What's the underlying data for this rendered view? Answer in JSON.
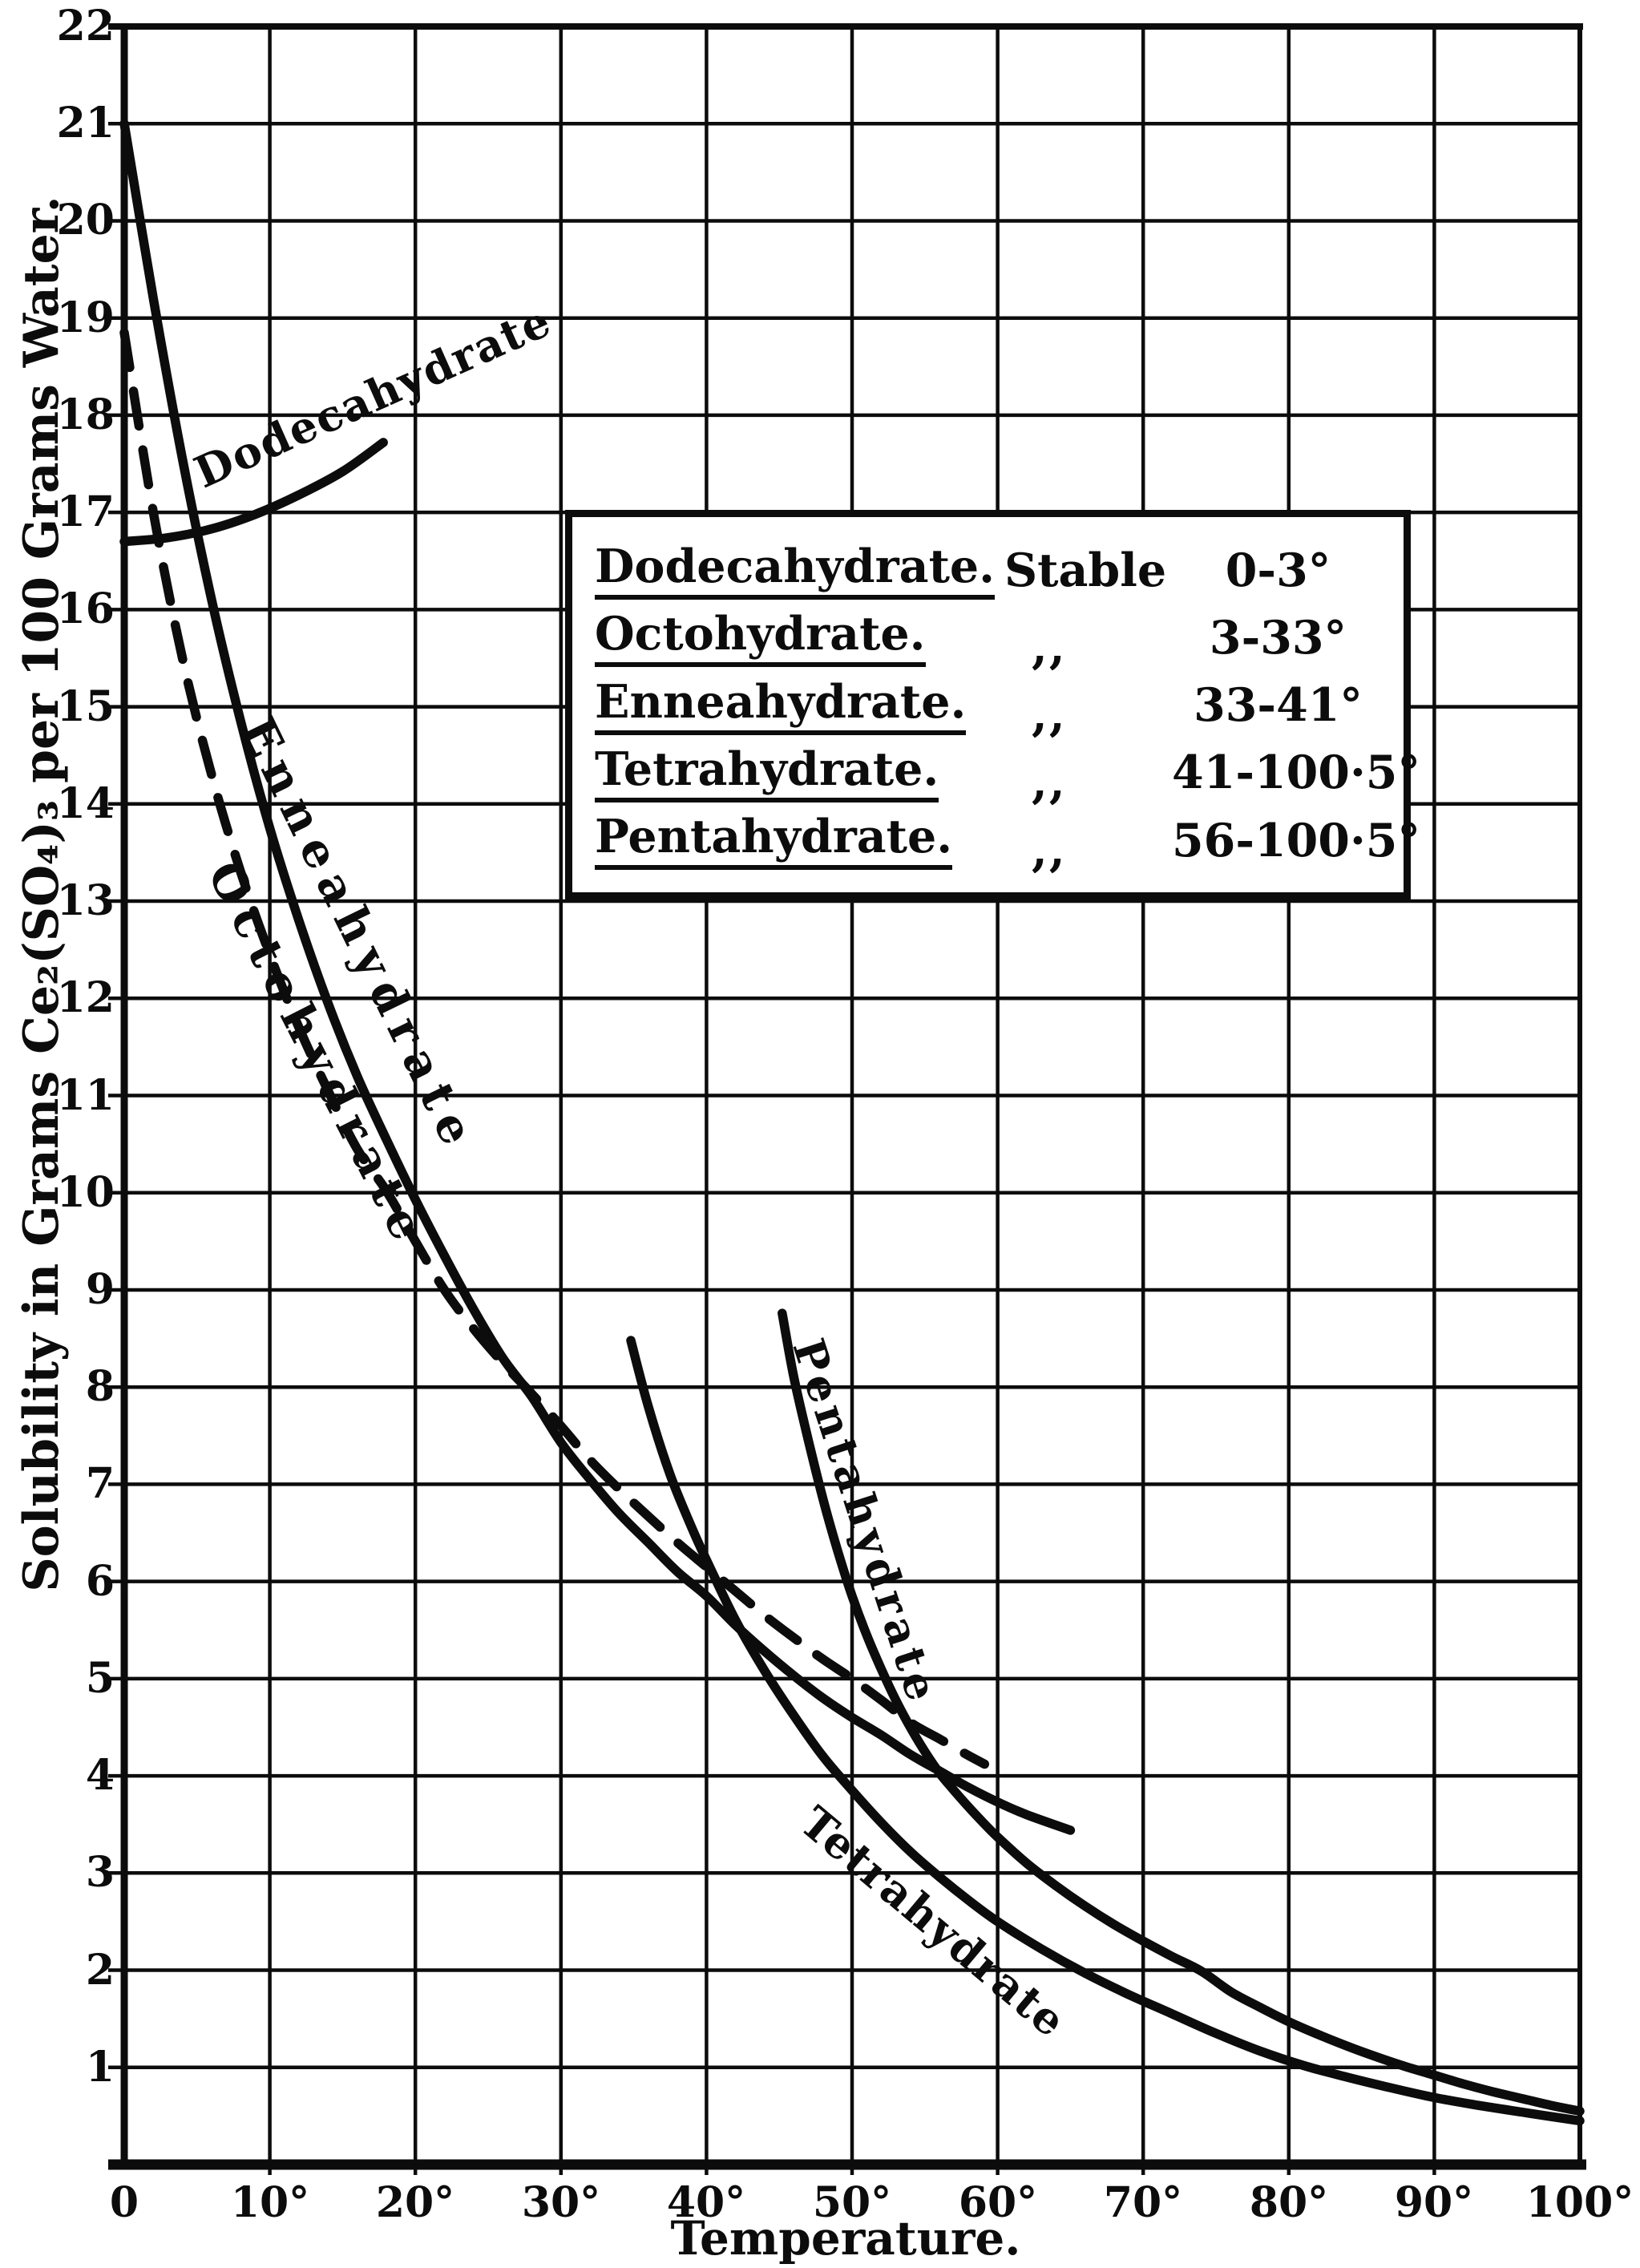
{
  "colors": {
    "ink": "#0c0c0c",
    "paper": "#ffffff"
  },
  "axes": {
    "x_title": "Temperature.",
    "y_title": "Solubility in Grams Ce₂(SO₄)₃ per 100 Grams Water."
  },
  "legend": {
    "rows": [
      {
        "name": "Dodecahydrate.",
        "status": "Stable",
        "range": "0-3°"
      },
      {
        "name": "Octohydrate.",
        "status": ",,",
        "range": "3-33°"
      },
      {
        "name": "Enneahydrate.",
        "status": ",,",
        "range": "33-41°"
      },
      {
        "name": "Tetrahydrate.",
        "status": ",,",
        "range": "41-100·5°"
      },
      {
        "name": "Pentahydrate.",
        "status": ",,",
        "range": "56-100·5°"
      }
    ]
  },
  "chart_data": {
    "type": "line",
    "xlabel": "Temperature.",
    "ylabel": "Solubility in Grams Ce₂(SO₄)₃ per 100 Grams Water.",
    "xlim": [
      0,
      100
    ],
    "ylim": [
      0,
      22
    ],
    "grid": true,
    "x_ticks": [
      [
        0,
        "0"
      ],
      [
        10,
        "10°"
      ],
      [
        20,
        "20°"
      ],
      [
        30,
        "30°"
      ],
      [
        40,
        "40°"
      ],
      [
        50,
        "50°"
      ],
      [
        60,
        "60°"
      ],
      [
        70,
        "70°"
      ],
      [
        80,
        "80°"
      ],
      [
        90,
        "90°"
      ],
      [
        100,
        "100°"
      ]
    ],
    "y_ticks": [
      "1",
      "2",
      "3",
      "4",
      "5",
      "6",
      "7",
      "8",
      "9",
      "10",
      "11",
      "12",
      "13",
      "14",
      "15",
      "16",
      "17",
      "18",
      "19",
      "20",
      "21",
      "22"
    ],
    "series": [
      {
        "name": "Dodecahydrate",
        "label": "Dodecahydrate",
        "style": "solid",
        "points": [
          [
            0,
            16.7
          ],
          [
            3,
            16.74
          ],
          [
            6,
            16.83
          ],
          [
            9,
            16.98
          ],
          [
            12,
            17.18
          ],
          [
            15,
            17.42
          ],
          [
            17.8,
            17.72
          ]
        ]
      },
      {
        "name": "Enneahydrate",
        "label": "Enneahydrate",
        "style": "solid",
        "points": [
          [
            0,
            21.0
          ],
          [
            2,
            19.2
          ],
          [
            4,
            17.55
          ],
          [
            6,
            16.1
          ],
          [
            8,
            14.85
          ],
          [
            10,
            13.75
          ],
          [
            12,
            12.8
          ],
          [
            14,
            11.95
          ],
          [
            16,
            11.2
          ],
          [
            18,
            10.55
          ],
          [
            20,
            9.93
          ],
          [
            22,
            9.35
          ],
          [
            24,
            8.8
          ],
          [
            26,
            8.3
          ],
          [
            28,
            7.9
          ],
          [
            30,
            7.43
          ],
          [
            32,
            7.05
          ],
          [
            34,
            6.7
          ],
          [
            36,
            6.4
          ],
          [
            38,
            6.1
          ],
          [
            40,
            5.85
          ],
          [
            42,
            5.55
          ],
          [
            44,
            5.28
          ],
          [
            46,
            5.03
          ],
          [
            48,
            4.8
          ],
          [
            50,
            4.6
          ],
          [
            52,
            4.42
          ],
          [
            54,
            4.22
          ],
          [
            56,
            4.05
          ],
          [
            58,
            3.88
          ],
          [
            60,
            3.73
          ],
          [
            62,
            3.6
          ],
          [
            65,
            3.44
          ]
        ]
      },
      {
        "name": "Octohydrate",
        "label": "Octohydrate",
        "style": "dashed",
        "points": [
          [
            0,
            18.85
          ],
          [
            2,
            17.0
          ],
          [
            4,
            15.5
          ],
          [
            6,
            14.3
          ],
          [
            8,
            13.3
          ],
          [
            10,
            12.45
          ],
          [
            12,
            11.7
          ],
          [
            14,
            11.05
          ],
          [
            16,
            10.45
          ],
          [
            18,
            10.02
          ],
          [
            20,
            9.5
          ],
          [
            22,
            9.0
          ],
          [
            24,
            8.6
          ],
          [
            26,
            8.25
          ],
          [
            28,
            7.93
          ],
          [
            30,
            7.6
          ],
          [
            32,
            7.25
          ],
          [
            34,
            6.95
          ],
          [
            36,
            6.67
          ],
          [
            38,
            6.4
          ],
          [
            40,
            6.15
          ],
          [
            42,
            5.9
          ],
          [
            44,
            5.65
          ],
          [
            46,
            5.42
          ],
          [
            48,
            5.2
          ],
          [
            50,
            5.0
          ],
          [
            52,
            4.78
          ],
          [
            54,
            4.55
          ],
          [
            56,
            4.38
          ],
          [
            57.5,
            4.25
          ],
          [
            59.1,
            4.12
          ]
        ]
      },
      {
        "name": "Tetrahydrate",
        "label": "Tetrahydrate",
        "style": "solid",
        "points": [
          [
            34.8,
            8.48
          ],
          [
            36,
            7.8
          ],
          [
            37.5,
            7.1
          ],
          [
            39,
            6.55
          ],
          [
            40,
            6.22
          ],
          [
            42,
            5.6
          ],
          [
            44,
            5.08
          ],
          [
            46,
            4.62
          ],
          [
            48,
            4.2
          ],
          [
            50,
            3.85
          ],
          [
            52,
            3.52
          ],
          [
            54,
            3.22
          ],
          [
            56,
            2.96
          ],
          [
            58,
            2.72
          ],
          [
            60,
            2.5
          ],
          [
            63,
            2.22
          ],
          [
            66,
            1.97
          ],
          [
            69,
            1.75
          ],
          [
            72,
            1.55
          ],
          [
            75,
            1.35
          ],
          [
            78,
            1.17
          ],
          [
            81,
            1.02
          ],
          [
            84,
            0.9
          ],
          [
            87,
            0.79
          ],
          [
            90,
            0.69
          ],
          [
            93,
            0.61
          ],
          [
            96,
            0.54
          ],
          [
            100,
            0.45
          ]
        ]
      },
      {
        "name": "Pentahydrate",
        "label": "Pentahydrate",
        "style": "solid",
        "points": [
          [
            45.2,
            8.76
          ],
          [
            46,
            8.1
          ],
          [
            47,
            7.45
          ],
          [
            48,
            6.85
          ],
          [
            49,
            6.32
          ],
          [
            50,
            5.85
          ],
          [
            51,
            5.45
          ],
          [
            52,
            5.1
          ],
          [
            53,
            4.78
          ],
          [
            54,
            4.5
          ],
          [
            55,
            4.25
          ],
          [
            56,
            4.03
          ],
          [
            57,
            3.85
          ],
          [
            58,
            3.68
          ],
          [
            59,
            3.52
          ],
          [
            60,
            3.37
          ],
          [
            62,
            3.1
          ],
          [
            64,
            2.87
          ],
          [
            66,
            2.66
          ],
          [
            68,
            2.47
          ],
          [
            70,
            2.3
          ],
          [
            72,
            2.14
          ],
          [
            74,
            1.99
          ],
          [
            76,
            1.78
          ],
          [
            78,
            1.62
          ],
          [
            80,
            1.47
          ],
          [
            82,
            1.34
          ],
          [
            84,
            1.22
          ],
          [
            86,
            1.11
          ],
          [
            88,
            1.01
          ],
          [
            90,
            0.92
          ],
          [
            92,
            0.83
          ],
          [
            94,
            0.75
          ],
          [
            96,
            0.68
          ],
          [
            98,
            0.61
          ],
          [
            100,
            0.55
          ]
        ]
      }
    ]
  }
}
